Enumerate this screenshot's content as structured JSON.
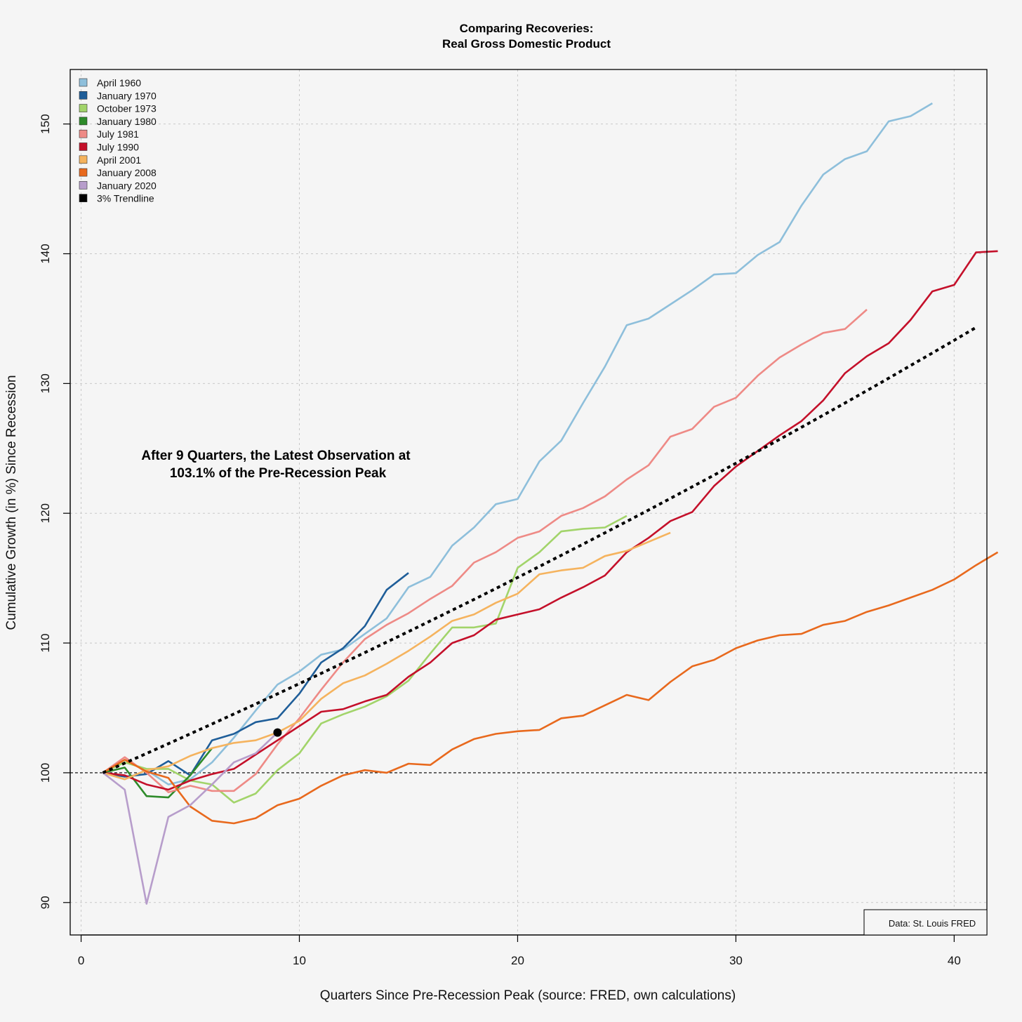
{
  "chart_data": {
    "type": "line",
    "title": "Comparing Recoveries:",
    "subtitle": "Real Gross Domestic Product",
    "xlabel": "Quarters Since Pre-Recession Peak (source: FRED, own calculations)",
    "ylabel": "Cumulative Growth (in %) Since Recession",
    "xlim": [
      -0.5,
      41.5
    ],
    "ylim": [
      87.5,
      154.2
    ],
    "x_ticks": [
      0,
      10,
      20,
      30,
      40
    ],
    "y_ticks": [
      90,
      100,
      110,
      120,
      130,
      140,
      150
    ],
    "grid": true,
    "legend_position": "top-left",
    "reference_line": 100,
    "annotation": {
      "line1": "After 9 Quarters, the Latest Observation at",
      "line2": "103.1% of the Pre-Recession Peak",
      "point": {
        "x": 9,
        "y": 103.1
      }
    },
    "source_note": "Data: St. Louis FRED",
    "series": [
      {
        "name": "April 1960",
        "color": "#8ebfdb",
        "start_x": 1,
        "values": [
          100,
          99.5,
          100.2,
          99.1,
          99.5,
          100.8,
          102.7,
          104.8,
          106.8,
          107.8,
          109.1,
          109.5,
          110.7,
          111.9,
          114.3,
          115.1,
          117.5,
          118.9,
          120.7,
          121.1,
          124,
          125.6,
          128.5,
          131.3,
          134.5,
          135,
          136.1,
          137.2,
          138.4,
          138.5,
          139.9,
          140.9,
          143.7,
          146.1,
          147.3,
          147.9,
          150.2,
          150.6,
          151.6
        ]
      },
      {
        "name": "January 1970",
        "color": "#1f5e99",
        "start_x": 1,
        "values": [
          100,
          99.7,
          99.9,
          100.9,
          99.8,
          102.5,
          103,
          103.9,
          104.2,
          106.1,
          108.5,
          109.6,
          111.3,
          114.1,
          115.4
        ]
      },
      {
        "name": "October 1973",
        "color": "#a2d46a",
        "start_x": 1,
        "values": [
          100,
          100.8,
          100.3,
          100.3,
          99.4,
          99.1,
          97.7,
          98.4,
          100.2,
          101.5,
          103.8,
          104.5,
          105.1,
          105.9,
          107.1,
          109.2,
          111.2,
          111.2,
          111.5,
          115.8,
          117,
          118.6,
          118.8,
          118.9,
          119.8
        ]
      },
      {
        "name": "January 1980",
        "color": "#2e8b2a",
        "start_x": 1,
        "values": [
          100,
          100.4,
          98.2,
          98.1,
          99.8,
          101.9
        ]
      },
      {
        "name": "July 1981",
        "color": "#ee8a86",
        "start_x": 1,
        "values": [
          100,
          101.2,
          100,
          98.5,
          99,
          98.6,
          98.6,
          99.9,
          102.2,
          104.2,
          106.4,
          108.5,
          110.3,
          111.4,
          112.3,
          113.4,
          114.4,
          116.2,
          117,
          118.1,
          118.6,
          119.8,
          120.4,
          121.3,
          122.6,
          123.7,
          125.9,
          126.5,
          128.2,
          128.9,
          130.6,
          132,
          133,
          133.9,
          134.2,
          135.7
        ]
      },
      {
        "name": "July 1990",
        "color": "#c4102a",
        "start_x": 1,
        "values": [
          100,
          99.8,
          99.1,
          98.7,
          99.4,
          99.9,
          100.3,
          101.4,
          102.5,
          103.6,
          104.7,
          104.9,
          105.5,
          106,
          107.4,
          108.5,
          110,
          110.6,
          111.8,
          112.2,
          112.6,
          113.5,
          114.3,
          115.2,
          117,
          118.1,
          119.4,
          120.1,
          122.1,
          123.6,
          124.8,
          126,
          127.1,
          128.7,
          130.8,
          132.1,
          133.1,
          134.9,
          137.1,
          137.6,
          140.1,
          140.2
        ]
      },
      {
        "name": "April 2001",
        "color": "#f5b35e",
        "start_x": 1,
        "values": [
          100,
          99.5,
          100.2,
          100.5,
          101.3,
          101.9,
          102.3,
          102.5,
          103.1,
          104,
          105.7,
          106.9,
          107.5,
          108.4,
          109.4,
          110.5,
          111.7,
          112.2,
          113.1,
          113.8,
          115.3,
          115.6,
          115.8,
          116.7,
          117.1,
          117.8,
          118.5
        ]
      },
      {
        "name": "January 2008",
        "color": "#e8691d",
        "start_x": 1,
        "values": [
          100,
          101,
          100.1,
          99.6,
          97.4,
          96.3,
          96.1,
          96.5,
          97.5,
          98,
          99,
          99.8,
          100.2,
          100,
          100.7,
          100.6,
          101.8,
          102.6,
          103,
          103.2,
          103.3,
          104.2,
          104.4,
          105.2,
          106,
          105.6,
          107,
          108.2,
          108.7,
          109.6,
          110.2,
          110.6,
          110.7,
          111.4,
          111.7,
          112.4,
          112.9,
          113.5,
          114.1,
          114.9,
          116,
          117
        ]
      },
      {
        "name": "January 2020",
        "color": "#b79dcb",
        "start_x": 1,
        "values": [
          100,
          98.7,
          89.9,
          96.6,
          97.5,
          99.1,
          100.8,
          101.5,
          103.1
        ]
      },
      {
        "name": "3% Trendline",
        "color": "#000000",
        "start_x": 1,
        "dashed": true,
        "values": [
          100,
          100.74,
          101.49,
          102.24,
          103,
          103.76,
          104.53,
          105.3,
          106.08,
          106.87,
          107.66,
          108.46,
          109.26,
          110.07,
          110.88,
          111.7,
          112.53,
          113.36,
          114.2,
          115.05,
          115.9,
          116.76,
          117.62,
          118.49,
          119.37,
          120.25,
          121.14,
          122.04,
          122.94,
          123.85,
          124.77,
          125.69,
          126.62,
          127.56,
          128.5,
          129.45,
          130.41,
          131.38,
          132.35,
          133.33,
          134.32
        ]
      }
    ]
  }
}
